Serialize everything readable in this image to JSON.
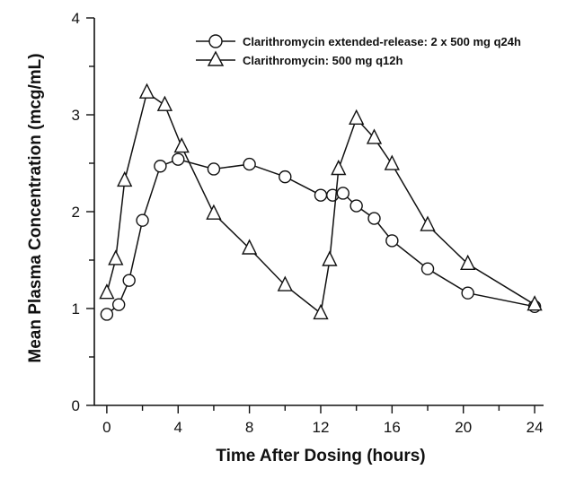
{
  "chart_data": {
    "type": "line",
    "xlabel": "Time After Dosing (hours)",
    "ylabel": "Mean Plasma Concentration (mcg/mL)",
    "xlim": [
      -0.7,
      24.5
    ],
    "ylim": [
      0,
      4
    ],
    "x_ticks": [
      0,
      4,
      8,
      12,
      16,
      20,
      24
    ],
    "y_ticks": [
      0,
      1,
      2,
      3,
      4
    ],
    "grid": false,
    "legend_position": "top-right",
    "series": [
      {
        "name": "Clarithromycin extended-release: 2 x 500 mg q24h",
        "marker": "circle",
        "color": "#111111",
        "x": [
          0,
          0.67,
          1.25,
          2,
          3,
          4,
          6,
          8,
          10,
          12,
          12.67,
          13.25,
          14,
          15,
          16,
          18,
          20.25,
          24
        ],
        "y": [
          0.94,
          1.04,
          1.29,
          1.91,
          2.47,
          2.54,
          2.44,
          2.49,
          2.36,
          2.17,
          2.17,
          2.19,
          2.06,
          1.93,
          1.7,
          1.41,
          1.16,
          1.02
        ]
      },
      {
        "name": "Clarithromycin: 500 mg q12h",
        "marker": "triangle",
        "color": "#111111",
        "x": [
          0,
          0.5,
          1,
          2.25,
          3.25,
          4.2,
          6,
          8,
          10,
          12,
          12.5,
          13,
          14,
          15,
          16,
          18,
          20.25,
          24
        ],
        "y": [
          1.16,
          1.51,
          2.32,
          3.23,
          3.1,
          2.67,
          1.98,
          1.62,
          1.24,
          0.95,
          1.5,
          2.44,
          2.96,
          2.76,
          2.49,
          1.86,
          1.46,
          1.04
        ]
      }
    ]
  }
}
